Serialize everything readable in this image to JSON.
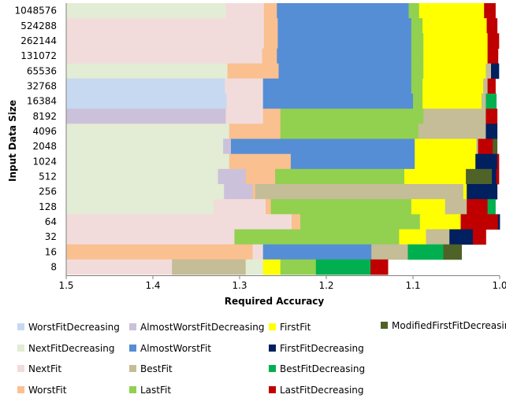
{
  "chart_data": {
    "type": "bar",
    "subtype": "stacked-horizontal-strips",
    "title": "",
    "xlabel": "Required Accuracy",
    "ylabel": "Input Data Size",
    "xlim": [
      1.5,
      1.0
    ],
    "x_reversed": true,
    "xticks": [
      "1.5",
      "1.4",
      "1.3",
      "1.2",
      "1.1",
      "1.0"
    ],
    "xtick_values": [
      1.5,
      1.4,
      1.3,
      1.2,
      1.1,
      1.0
    ],
    "grid": false,
    "legend_position": "bottom",
    "colors": {
      "WorstFitDecreasing": "#c6d9f0",
      "NextFitDecreasing": "#e3ecd4",
      "NextFit": "#f2dcdb",
      "WorstFit": "#fac090",
      "AlmostWorstFitDecreasing": "#ccc1da",
      "AlmostWorstFit": "#558ed5",
      "BestFit": "#c4bd97",
      "LastFit": "#92d050",
      "FirstFit": "#ffff00",
      "FirstFitDecreasing": "#002060",
      "BestFitDecreasing": "#00b050",
      "LastFitDecreasing": "#c00000",
      "ModifiedFirstFitDecreasing": "#4f6228"
    },
    "legend": [
      [
        "WorstFitDecreasing",
        "NextFitDecreasing",
        "NextFit",
        "WorstFit"
      ],
      [
        "AlmostWorstFitDecreasing",
        "AlmostWorstFit",
        "BestFit",
        "LastFit"
      ],
      [
        "FirstFit",
        "FirstFitDecreasing",
        "BestFitDecreasing",
        "LastFitDecreasing"
      ],
      [
        "ModifiedFirstFitDecreasing"
      ]
    ],
    "rows": [
      {
        "label": "1048576",
        "segments": [
          [
            "WorstFitDecreasing",
            1.5,
            1.5
          ],
          [
            "NextFitDecreasing",
            1.5,
            1.316
          ],
          [
            "NextFit",
            1.316,
            1.272
          ],
          [
            "WorstFit",
            1.272,
            1.257
          ],
          [
            "AlmostWorstFit",
            1.257,
            1.105
          ],
          [
            "LastFit",
            1.105,
            1.093
          ],
          [
            "FirstFit",
            1.093,
            1.018
          ],
          [
            "LastFitDecreasing",
            1.018,
            1.005
          ]
        ]
      },
      {
        "label": "524288",
        "segments": [
          [
            "NextFit",
            1.5,
            1.272
          ],
          [
            "WorstFit",
            1.272,
            1.256
          ],
          [
            "AlmostWorstFit",
            1.256,
            1.102
          ],
          [
            "LastFit",
            1.102,
            1.089
          ],
          [
            "FirstFit",
            1.089,
            1.015
          ],
          [
            "LastFitDecreasing",
            1.015,
            1.003
          ]
        ]
      },
      {
        "label": "262144",
        "segments": [
          [
            "NextFit",
            1.5,
            1.272
          ],
          [
            "WorstFit",
            1.272,
            1.256
          ],
          [
            "AlmostWorstFit",
            1.256,
            1.102
          ],
          [
            "LastFit",
            1.102,
            1.088
          ],
          [
            "FirstFit",
            1.088,
            1.014
          ],
          [
            "LastFitDecreasing",
            1.014,
            1.001
          ]
        ]
      },
      {
        "label": "131072",
        "segments": [
          [
            "NextFit",
            1.5,
            1.274
          ],
          [
            "WorstFit",
            1.274,
            1.257
          ],
          [
            "AlmostWorstFit",
            1.257,
            1.102
          ],
          [
            "LastFit",
            1.102,
            1.088
          ],
          [
            "FirstFit",
            1.088,
            1.014
          ],
          [
            "LastFitDecreasing",
            1.014,
            1.002
          ]
        ]
      },
      {
        "label": "65536",
        "segments": [
          [
            "NextFitDecreasing",
            1.5,
            1.314
          ],
          [
            "WorstFit",
            1.314,
            1.255
          ],
          [
            "AlmostWorstFit",
            1.255,
            1.102
          ],
          [
            "LastFit",
            1.102,
            1.088
          ],
          [
            "FirstFit",
            1.088,
            1.016
          ],
          [
            "BestFit",
            1.016,
            1.01
          ],
          [
            "FirstFitDecreasing",
            1.01,
            1.001
          ]
        ]
      },
      {
        "label": "32768",
        "segments": [
          [
            "WorstFitDecreasing",
            1.5,
            1.317
          ],
          [
            "NextFit",
            1.317,
            1.273
          ],
          [
            "AlmostWorstFit",
            1.273,
            1.102
          ],
          [
            "LastFit",
            1.102,
            1.089
          ],
          [
            "FirstFit",
            1.089,
            1.019
          ],
          [
            "BestFit",
            1.019,
            1.014
          ],
          [
            "LastFitDecreasing",
            1.014,
            1.005
          ]
        ]
      },
      {
        "label": "16384",
        "segments": [
          [
            "WorstFitDecreasing",
            1.5,
            1.315
          ],
          [
            "NextFit",
            1.315,
            1.273
          ],
          [
            "AlmostWorstFit",
            1.273,
            1.1
          ],
          [
            "LastFit",
            1.1,
            1.089
          ],
          [
            "FirstFit",
            1.089,
            1.021
          ],
          [
            "BestFit",
            1.021,
            1.016
          ],
          [
            "BestFitDecreasing",
            1.016,
            1.004
          ]
        ]
      },
      {
        "label": "8192",
        "segments": [
          [
            "AlmostWorstFitDecreasing",
            1.5,
            1.316
          ],
          [
            "NextFit",
            1.316,
            1.273
          ],
          [
            "WorstFit",
            1.273,
            1.253
          ],
          [
            "LastFit",
            1.253,
            1.088
          ],
          [
            "BestFit",
            1.088,
            1.016
          ],
          [
            "LastFitDecreasing",
            1.016,
            1.003
          ]
        ]
      },
      {
        "label": "4096",
        "segments": [
          [
            "NextFitDecreasing",
            1.5,
            1.312
          ],
          [
            "WorstFit",
            1.312,
            1.253
          ],
          [
            "LastFit",
            1.253,
            1.094
          ],
          [
            "BestFit",
            1.094,
            1.016
          ],
          [
            "FirstFitDecreasing",
            1.016,
            1.003
          ]
        ]
      },
      {
        "label": "2048",
        "segments": [
          [
            "NextFitDecreasing",
            1.5,
            1.319
          ],
          [
            "AlmostWorstFitDecreasing",
            1.319,
            1.31
          ],
          [
            "AlmostWorstFit",
            1.31,
            1.098
          ],
          [
            "FirstFit",
            1.098,
            1.027
          ],
          [
            "BestFit",
            1.027,
            1.025
          ],
          [
            "LastFitDecreasing",
            1.025,
            1.008
          ],
          [
            "ModifiedFirstFitDecreasing",
            1.008,
            1.003
          ]
        ]
      },
      {
        "label": "1024",
        "segments": [
          [
            "NextFitDecreasing",
            1.5,
            1.312
          ],
          [
            "WorstFit",
            1.312,
            1.241
          ],
          [
            "AlmostWorstFit",
            1.241,
            1.098
          ],
          [
            "FirstFit",
            1.098,
            1.028
          ],
          [
            "FirstFitDecreasing",
            1.028,
            1.003
          ],
          [
            "LastFitDecreasing",
            1.003,
            1.001
          ]
        ]
      },
      {
        "label": "512",
        "segments": [
          [
            "NextFitDecreasing",
            1.5,
            1.325
          ],
          [
            "AlmostWorstFitDecreasing",
            1.325,
            1.293
          ],
          [
            "WorstFit",
            1.293,
            1.259
          ],
          [
            "LastFit",
            1.259,
            1.11
          ],
          [
            "FirstFit",
            1.11,
            1.039
          ],
          [
            "ModifiedFirstFitDecreasing",
            1.039,
            1.009
          ],
          [
            "FirstFitDecreasing",
            1.009,
            1.004
          ],
          [
            "LastFitDecreasing",
            1.004,
            1.001
          ]
        ]
      },
      {
        "label": "256",
        "segments": [
          [
            "NextFitDecreasing",
            1.5,
            1.318
          ],
          [
            "AlmostWorstFitDecreasing",
            1.318,
            1.285
          ],
          [
            "WorstFit",
            1.285,
            1.282
          ],
          [
            "BestFit",
            1.282,
            1.042
          ],
          [
            "FirstFit",
            1.042,
            1.038
          ],
          [
            "FirstFitDecreasing",
            1.038,
            1.003
          ]
        ]
      },
      {
        "label": "128",
        "segments": [
          [
            "NextFitDecreasing",
            1.5,
            1.33
          ],
          [
            "NextFit",
            1.33,
            1.27
          ],
          [
            "WorstFit",
            1.27,
            1.264
          ],
          [
            "LastFit",
            1.264,
            1.102
          ],
          [
            "FirstFit",
            1.102,
            1.063
          ],
          [
            "BestFit",
            1.063,
            1.038
          ],
          [
            "LastFitDecreasing",
            1.038,
            1.014
          ],
          [
            "BestFitDecreasing",
            1.014,
            1.005
          ]
        ]
      },
      {
        "label": "64",
        "segments": [
          [
            "NextFit",
            1.5,
            1.24
          ],
          [
            "WorstFit",
            1.24,
            1.23
          ],
          [
            "LastFit",
            1.23,
            1.092
          ],
          [
            "FirstFit",
            1.092,
            1.045
          ],
          [
            "LastFitDecreasing",
            1.045,
            1.002
          ],
          [
            "FirstFitDecreasing",
            1.002,
            1.0
          ]
        ]
      },
      {
        "label": "32",
        "segments": [
          [
            "NextFit",
            1.5,
            1.306
          ],
          [
            "LastFit",
            1.306,
            1.116
          ],
          [
            "FirstFit",
            1.116,
            1.085
          ],
          [
            "BestFit",
            1.085,
            1.058
          ],
          [
            "FirstFitDecreasing",
            1.058,
            1.031
          ],
          [
            "LastFitDecreasing",
            1.031,
            1.016
          ]
        ]
      },
      {
        "label": "16",
        "segments": [
          [
            "WorstFit",
            1.5,
            1.285
          ],
          [
            "NextFit",
            1.285,
            1.273
          ],
          [
            "AlmostWorstFit",
            1.273,
            1.148
          ],
          [
            "BestFit",
            1.148,
            1.106
          ],
          [
            "BestFitDecreasing",
            1.106,
            1.065
          ],
          [
            "ModifiedFirstFitDecreasing",
            1.065,
            1.044
          ]
        ]
      },
      {
        "label": "8",
        "segments": [
          [
            "NextFit",
            1.5,
            1.378
          ],
          [
            "BestFit",
            1.378,
            1.293
          ],
          [
            "NextFitDecreasing",
            1.293,
            1.273
          ],
          [
            "FirstFit",
            1.273,
            1.253
          ],
          [
            "LastFit",
            1.253,
            1.212
          ],
          [
            "BestFitDecreasing",
            1.212,
            1.149
          ],
          [
            "LastFitDecreasing",
            1.149,
            1.129
          ]
        ]
      }
    ]
  }
}
